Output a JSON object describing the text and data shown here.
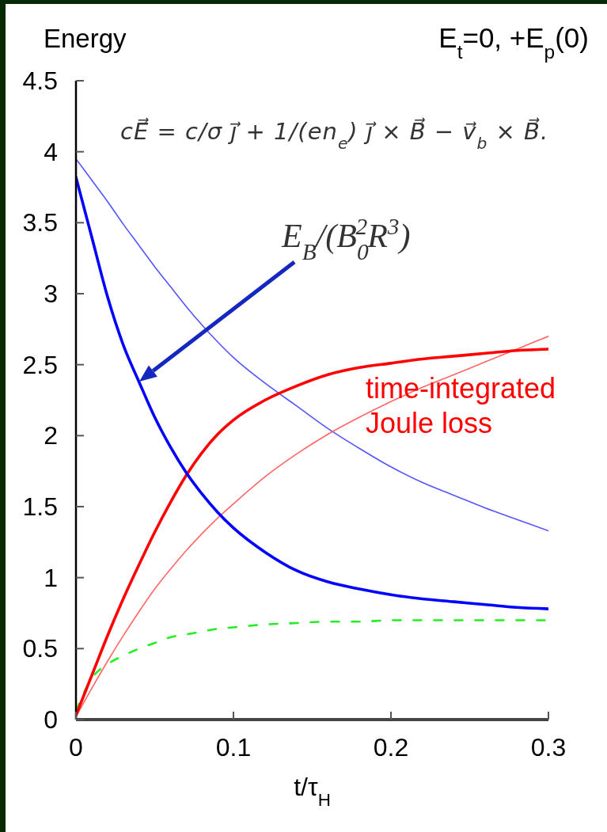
{
  "chart_data": {
    "type": "line",
    "title": "E$_{t}$=0, +E$_{p}$(0)",
    "xlabel": "t/τ$_{H}$",
    "ylabel": "Energy",
    "x": [
      0,
      0.01,
      0.02,
      0.03,
      0.04,
      0.05,
      0.06,
      0.07,
      0.08,
      0.09,
      0.1,
      0.12,
      0.14,
      0.16,
      0.18,
      0.2,
      0.22,
      0.24,
      0.26,
      0.28,
      0.3
    ],
    "series": [
      {
        "color": "#5555ff",
        "values": [
          3.95,
          3.8,
          3.65,
          3.49,
          3.34,
          3.19,
          3.05,
          2.91,
          2.78,
          2.66,
          2.55,
          2.37,
          2.21,
          2.05,
          1.91,
          1.78,
          1.67,
          1.58,
          1.49,
          1.41,
          1.33
        ]
      },
      {
        "color": "#ff6666",
        "values": [
          0.02,
          0.22,
          0.41,
          0.59,
          0.76,
          0.92,
          1.06,
          1.19,
          1.31,
          1.42,
          1.52,
          1.71,
          1.87,
          2.01,
          2.13,
          2.24,
          2.34,
          2.43,
          2.52,
          2.61,
          2.7
        ]
      },
      {
        "color": "#22ee22",
        "line_style": "dashed",
        "values": [
          0.06,
          0.29,
          0.39,
          0.45,
          0.5,
          0.54,
          0.58,
          0.6,
          0.62,
          0.64,
          0.65,
          0.67,
          0.68,
          0.69,
          0.69,
          0.7,
          0.7,
          0.7,
          0.7,
          0.7,
          0.7
        ]
      },
      {
        "name": "time-integrated Joule loss",
        "color": "#ff0000",
        "values": [
          0.03,
          0.31,
          0.59,
          0.85,
          1.09,
          1.32,
          1.53,
          1.72,
          1.88,
          2.01,
          2.11,
          2.25,
          2.35,
          2.43,
          2.48,
          2.51,
          2.54,
          2.56,
          2.58,
          2.6,
          2.61
        ]
      },
      {
        "color": "#0000ff",
        "values": [
          3.82,
          3.4,
          2.98,
          2.64,
          2.38,
          2.13,
          1.92,
          1.74,
          1.59,
          1.46,
          1.35,
          1.18,
          1.05,
          0.97,
          0.92,
          0.88,
          0.85,
          0.83,
          0.81,
          0.79,
          0.78
        ]
      }
    ],
    "line_style": "solid",
    "marker": "none",
    "xlim": [
      0,
      0.3
    ],
    "ylim": [
      0,
      4.5
    ],
    "xticks": [
      0,
      0.1,
      0.2,
      0.3
    ],
    "yticks": [
      0,
      0.5,
      1,
      1.5,
      2,
      2.5,
      3,
      3.5,
      4,
      4.5
    ],
    "annotations": [
      "cE⃗ = c/σ j⃗ + 1/(en$_{e}$) j⃗ × B⃗ − v⃗$_{b}$ × B⃗.",
      "E$_{B}$/(B$_{0}$$^{2}$R$^{3}$)"
    ]
  }
}
